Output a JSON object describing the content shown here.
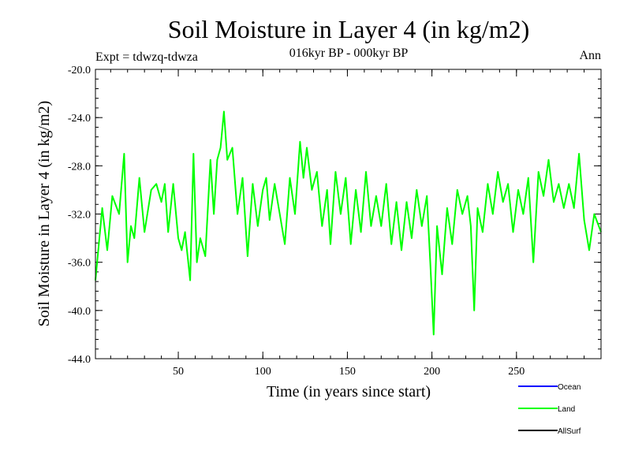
{
  "chart_data": {
    "type": "line",
    "title": "Soil Moisture in Layer 4 (in kg/m2)",
    "subtitle": "016kyr BP - 000kyr BP",
    "experiment": "Expt = tdwzq-tdwza",
    "season": "Ann",
    "xlabel": "Time (in years since start)",
    "ylabel": "Soil Moisture in Layer 4 (in kg/m2)",
    "xlim": [
      1,
      300
    ],
    "ylim": [
      -44.0,
      -20.0
    ],
    "x_ticks": [
      50,
      100,
      150,
      200,
      250
    ],
    "x_tick_labels": [
      "50",
      "100",
      "150",
      "200",
      "250"
    ],
    "y_ticks": [
      -44.0,
      -40.0,
      -36.0,
      -32.0,
      -28.0,
      -24.0,
      -20.0
    ],
    "y_tick_labels": [
      "-44.0",
      "-40.0",
      "-36.0",
      "-32.0",
      "-28.0",
      "-24.0",
      "-20.0"
    ],
    "legend": [
      {
        "label": "Ocean",
        "color": "#0000ff"
      },
      {
        "label": "Land",
        "color": "#00ff00"
      },
      {
        "label": "AllSurf",
        "color": "#000000"
      }
    ],
    "series": [
      {
        "name": "Land",
        "color": "#00ff00",
        "x": [
          1,
          5,
          8,
          11,
          15,
          18,
          20,
          22,
          24,
          27,
          30,
          34,
          37,
          40,
          42,
          44,
          47,
          50,
          52,
          54,
          57,
          59,
          61,
          63,
          66,
          69,
          71,
          73,
          75,
          77,
          79,
          82,
          85,
          88,
          91,
          94,
          97,
          100,
          102,
          104,
          107,
          110,
          113,
          116,
          119,
          122,
          124,
          126,
          129,
          132,
          135,
          138,
          140,
          143,
          146,
          149,
          152,
          155,
          158,
          161,
          164,
          167,
          170,
          173,
          176,
          179,
          182,
          185,
          188,
          191,
          194,
          197,
          199,
          201,
          203,
          206,
          209,
          212,
          215,
          218,
          221,
          223,
          225,
          227,
          230,
          233,
          236,
          239,
          242,
          245,
          248,
          251,
          254,
          257,
          260,
          263,
          266,
          269,
          272,
          275,
          278,
          281,
          284,
          287,
          290,
          293,
          296,
          300
        ],
        "values": [
          -37.5,
          -31.5,
          -35.0,
          -30.5,
          -32.0,
          -27.0,
          -36.0,
          -33.0,
          -34.0,
          -29.0,
          -33.5,
          -30.0,
          -29.5,
          -31.0,
          -29.5,
          -33.5,
          -29.5,
          -34.0,
          -35.0,
          -33.5,
          -37.5,
          -27.0,
          -36.0,
          -34.0,
          -35.5,
          -27.5,
          -32.0,
          -27.5,
          -26.5,
          -23.5,
          -27.5,
          -26.5,
          -32.0,
          -29.0,
          -35.5,
          -29.5,
          -33.0,
          -30.0,
          -29.0,
          -32.5,
          -29.5,
          -32.0,
          -34.5,
          -29.0,
          -32.0,
          -26.0,
          -29.0,
          -26.5,
          -30.0,
          -28.5,
          -33.0,
          -30.0,
          -34.5,
          -28.5,
          -32.0,
          -29.0,
          -34.5,
          -30.0,
          -33.5,
          -28.5,
          -33.0,
          -30.5,
          -33.0,
          -29.5,
          -34.5,
          -31.0,
          -35.0,
          -31.0,
          -34.0,
          -30.0,
          -33.0,
          -30.5,
          -36.0,
          -42.0,
          -33.0,
          -37.0,
          -31.5,
          -34.5,
          -30.0,
          -32.0,
          -30.5,
          -33.0,
          -40.0,
          -31.5,
          -33.5,
          -29.5,
          -32.0,
          -28.5,
          -31.0,
          -29.5,
          -33.5,
          -30.0,
          -32.0,
          -29.0,
          -36.0,
          -28.5,
          -30.5,
          -27.5,
          -31.0,
          -29.5,
          -31.5,
          -29.5,
          -31.5,
          -27.0,
          -32.5,
          -35.0,
          -32.0,
          -33.5
        ]
      }
    ]
  }
}
